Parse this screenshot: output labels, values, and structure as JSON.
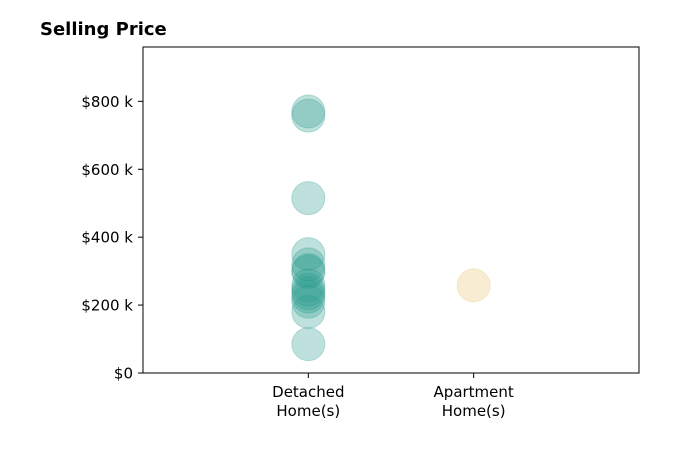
{
  "chart_data": {
    "type": "scatter",
    "title": "Selling Price",
    "xlabel": "",
    "ylabel": "",
    "categories": [
      [
        "Detached",
        "Home(s)"
      ],
      [
        "Apartment",
        "Home(s)"
      ]
    ],
    "x_range": [
      -1,
      2
    ],
    "y_range": [
      0,
      960000
    ],
    "y_ticks": [
      0,
      200000,
      400000,
      600000,
      800000
    ],
    "y_tick_labels": [
      "$0",
      "$200 k",
      "$400 k",
      "$600 k",
      "$800 k"
    ],
    "grid": false,
    "series": [
      {
        "color": "#2a9d8f",
        "alpha": 0.3,
        "points": [
          {
            "x": 0,
            "y": 770000
          },
          {
            "x": 0,
            "y": 758000
          },
          {
            "x": 0,
            "y": 515000
          },
          {
            "x": 0,
            "y": 350000
          },
          {
            "x": 0,
            "y": 320000
          },
          {
            "x": 0,
            "y": 303000
          },
          {
            "x": 0,
            "y": 298000
          },
          {
            "x": 0,
            "y": 258000
          },
          {
            "x": 0,
            "y": 245000
          },
          {
            "x": 0,
            "y": 235000
          },
          {
            "x": 0,
            "y": 225000
          },
          {
            "x": 0,
            "y": 210000
          },
          {
            "x": 0,
            "y": 180000
          },
          {
            "x": 0,
            "y": 85000
          }
        ]
      },
      {
        "color": "#e9c46a",
        "alpha": 0.3,
        "points": [
          {
            "x": 1,
            "y": 258000
          }
        ]
      }
    ]
  }
}
